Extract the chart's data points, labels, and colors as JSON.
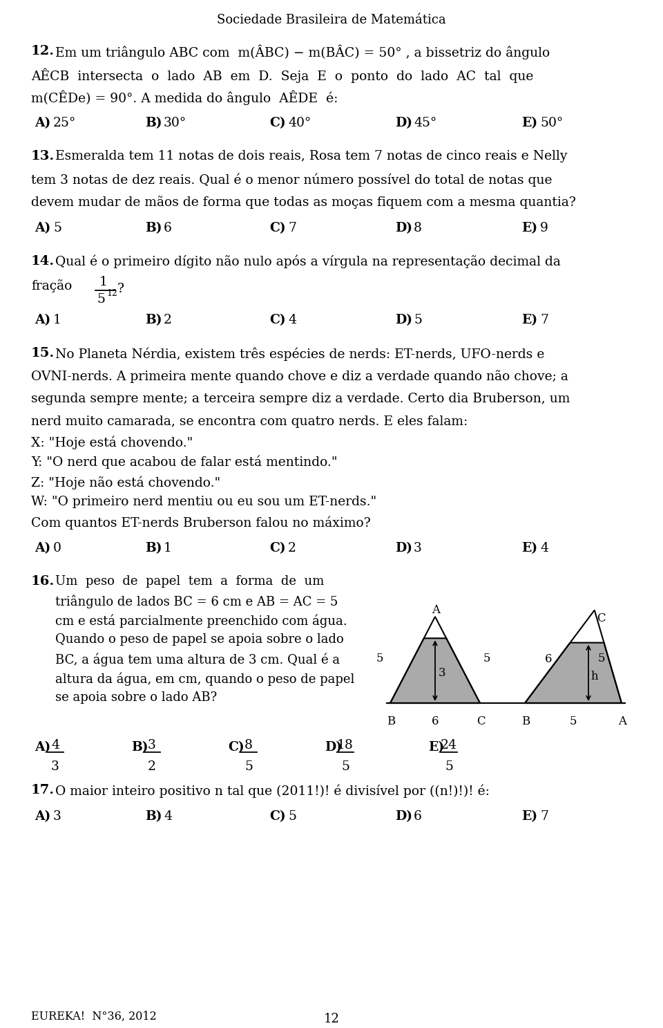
{
  "title": "Sociedade Brasileira de Matemática",
  "background": "#ffffff",
  "text_color": "#000000",
  "page_number": "12",
  "footer": "EUREKA!  N°36, 2012",
  "q12": {
    "num": "12.",
    "line1": "Em um triângulo ABC com  m(ÂBC) − m(BÂC) = 50° , a bissetriz do ângulo",
    "line2": "AÊCB  intersecta  o  lado  AB  em  D.  Seja  E  o  ponto  do  lado  AC  tal  que",
    "line3": "m(CÊDe) = 90°. A medida do ângulo  AÊDE  é:",
    "opts": [
      [
        "A)",
        "25°",
        50
      ],
      [
        "B)",
        "30°",
        210
      ],
      [
        "C)",
        "40°",
        390
      ],
      [
        "D)",
        "45°",
        572
      ],
      [
        "E)",
        "50°",
        755
      ]
    ]
  },
  "q13": {
    "num": "13.",
    "line1": "Esmeralda tem 11 notas de dois reais, Rosa tem 7 notas de cinco reais e Nelly",
    "line2": "tem 3 notas de dez reais. Qual é o menor número possível do total de notas que",
    "line3": "devem mudar de mãos de forma que todas as moças fiquem com a mesma quantia?",
    "opts": [
      [
        "A)",
        "5",
        50
      ],
      [
        "B)",
        "6",
        210
      ],
      [
        "C)",
        "7",
        390
      ],
      [
        "D)",
        "8",
        572
      ],
      [
        "E)",
        "9",
        755
      ]
    ]
  },
  "q14": {
    "num": "14.",
    "line1": "Qual é o primeiro dígito não nulo após a vírgula na representação decimal da",
    "opts": [
      [
        "A)",
        "1",
        50
      ],
      [
        "B)",
        "2",
        210
      ],
      [
        "C)",
        "4",
        390
      ],
      [
        "D)",
        "5",
        572
      ],
      [
        "E)",
        "7",
        755
      ]
    ]
  },
  "q15": {
    "num": "15.",
    "line1": "No Planeta Nérdia, existem três espécies de nerds: ET-nerds, UFO-nerds e",
    "line2": "OVNI-nerds. A primeira mente quando chove e diz a verdade quando não chove; a",
    "line3": "segunda sempre mente; a terceira sempre diz a verdade. Certo dia Bruberson, um",
    "line4": "nerd muito camarada, se encontra com quatro nerds. E eles falam:",
    "dialog": [
      "X: \"Hoje está chovendo.\"",
      "Y: \"O nerd que acabou de falar está mentindo.\"",
      "Z: \"Hoje não está chovendo.\"",
      "W: \"O primeiro nerd mentiu ou eu sou um ET-nerds.\""
    ],
    "qline": "Com quantos ET-nerds Bruberson falou no máximo?",
    "opts": [
      [
        "A)",
        "0",
        50
      ],
      [
        "B)",
        "1",
        210
      ],
      [
        "C)",
        "2",
        390
      ],
      [
        "D)",
        "3",
        572
      ],
      [
        "E)",
        "4",
        755
      ]
    ]
  },
  "q16": {
    "num": "16.",
    "col1_lines": [
      "Um  peso  de  papel  tem  a  forma  de  um",
      "triângulo de lados BC = 6 cm e AB = AC = 5",
      "cm e está parcialmente preenchido com água.",
      "Quando o peso de papel se apoia sobre o lado",
      "BC, a água tem uma altura de 3 cm. Qual é a",
      "altura da água, em cm, quando o peso de papel",
      "se apoia sobre o lado AB?"
    ],
    "opts": [
      [
        "A)",
        "4",
        "3",
        50
      ],
      [
        "B)",
        "3",
        "2",
        190
      ],
      [
        "C)",
        "8",
        "5",
        330
      ],
      [
        "D)",
        "18",
        "5",
        470
      ],
      [
        "E)",
        "24",
        "5",
        620
      ]
    ]
  },
  "q17": {
    "num": "17.",
    "line1": "O maior inteiro positivo n tal que (2011!)! é divisível por ((n!)!)! é:",
    "opts": [
      [
        "A)",
        "3",
        50
      ],
      [
        "B)",
        "4",
        210
      ],
      [
        "C)",
        "5",
        390
      ],
      [
        "D)",
        "6",
        572
      ],
      [
        "E)",
        "7",
        755
      ]
    ]
  }
}
